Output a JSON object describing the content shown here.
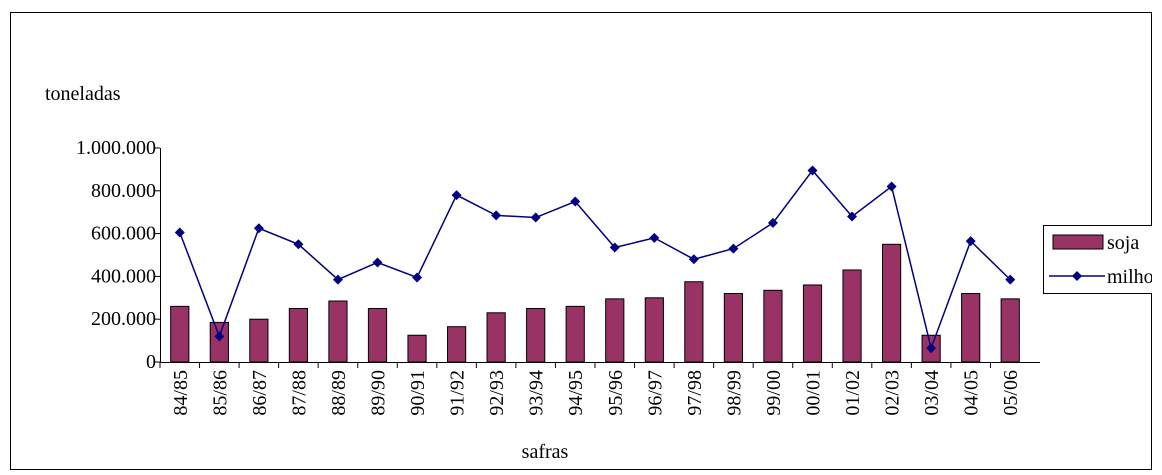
{
  "chart_data": {
    "type": "bar_line",
    "ylabel": "toneladas",
    "xlabel": "safras",
    "categories": [
      "84/85",
      "85/86",
      "86/87",
      "87/88",
      "88/89",
      "89/90",
      "90/91",
      "91/92",
      "92/93",
      "93/94",
      "94/95",
      "95/96",
      "96/97",
      "97/98",
      "98/99",
      "99/00",
      "00/01",
      "01/02",
      "02/03",
      "03/04",
      "04/05",
      "05/06"
    ],
    "series": [
      {
        "name": "soja",
        "type": "bar",
        "color": "#993366",
        "values": [
          260000,
          185000,
          200000,
          250000,
          285000,
          250000,
          125000,
          165000,
          230000,
          250000,
          260000,
          295000,
          300000,
          375000,
          320000,
          335000,
          360000,
          430000,
          550000,
          125000,
          320000,
          295000
        ]
      },
      {
        "name": "milho",
        "type": "line",
        "color": "#000080",
        "values": [
          605000,
          120000,
          625000,
          550000,
          385000,
          465000,
          395000,
          780000,
          685000,
          675000,
          750000,
          535000,
          580000,
          480000,
          530000,
          650000,
          895000,
          680000,
          820000,
          65000,
          565000,
          385000
        ]
      }
    ],
    "ylim": [
      0,
      1000000
    ],
    "yticks": [
      0,
      {
        "value": 200000,
        "label": "200.000"
      },
      {
        "value": 400000,
        "label": "400.000"
      },
      {
        "value": 600000,
        "label": "600.000"
      },
      {
        "value": 800000,
        "label": "800.000"
      },
      {
        "value": 1000000,
        "label": "1.000.000"
      }
    ],
    "legend": "right"
  }
}
